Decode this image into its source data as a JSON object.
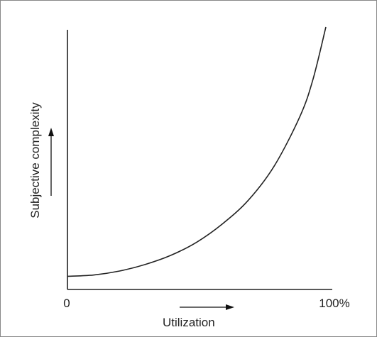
{
  "chart_data": {
    "type": "line",
    "title": "",
    "xlabel": "Utilization",
    "ylabel": "Subjective complexity",
    "x_tick_labels": [
      "0",
      "100%"
    ],
    "xlim": [
      0,
      100
    ],
    "ylim": [
      0,
      100
    ],
    "grid": false,
    "legend": "none",
    "series": [
      {
        "x": [
          0,
          10,
          20,
          30,
          40,
          50,
          60,
          70,
          80,
          90,
          95,
          100
        ],
        "y": [
          5,
          5.5,
          7,
          9.5,
          13,
          18,
          25,
          34,
          47,
          66,
          80,
          100
        ]
      }
    ]
  }
}
